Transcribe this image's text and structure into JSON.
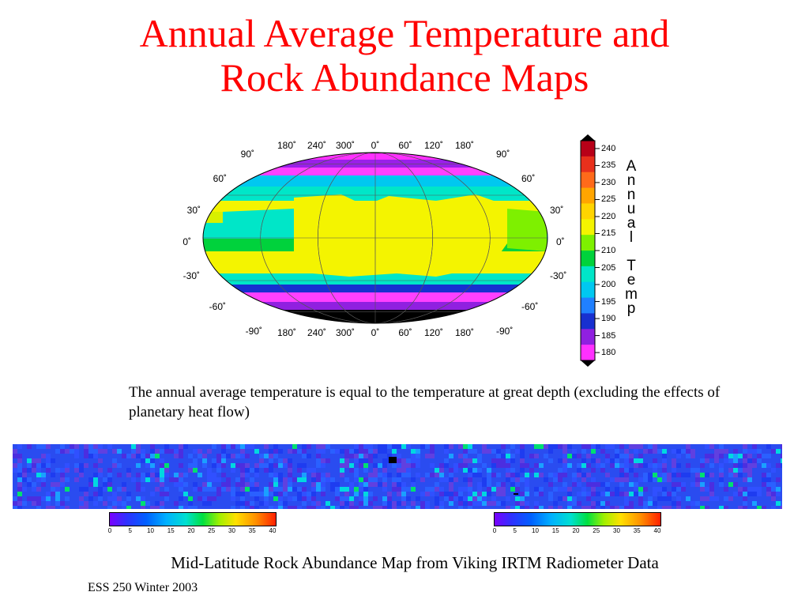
{
  "slide": {
    "title_line1": "Annual Average Temperature and",
    "title_line2": "Rock Abundance Maps",
    "caption": "The annual average temperature is equal to the temperature at great depth (excluding the effects of planetary heat flow)",
    "bottom_caption": "Mid-Latitude Rock Abundance Map from Viking IRTM Radiometer Data",
    "footer": "ESS 250 Winter 2003",
    "title_color": "#ff0000"
  },
  "temp_map": {
    "lon_labels": [
      "180˚",
      "240˚",
      "300˚",
      "0˚",
      "60˚",
      "120˚",
      "180˚"
    ],
    "lat_labels_left": [
      "90˚",
      "60˚",
      "30˚",
      "0˚",
      "-30˚",
      "-60˚",
      "-90˚"
    ],
    "lat_labels_right": [
      "90˚",
      "60˚",
      "30˚",
      "0˚",
      "-30˚",
      "-60˚",
      "-90˚"
    ]
  },
  "colorbar": {
    "title": "Annual Temp",
    "title_chars": [
      "A",
      "n",
      "n",
      "u",
      "a",
      "l",
      "",
      "T",
      "e",
      "m",
      "p"
    ],
    "ticks": [
      "240",
      "235",
      "230",
      "225",
      "220",
      "215",
      "210",
      "205",
      "200",
      "195",
      "190",
      "185",
      "180"
    ],
    "colors": [
      "#b80018",
      "#e8301c",
      "#ff6a1a",
      "#ffa500",
      "#ffd400",
      "#f4f400",
      "#7ef000",
      "#00d23c",
      "#00e6c8",
      "#00c8f0",
      "#2080ff",
      "#1830d0",
      "#9020e0",
      "#ff30ff"
    ]
  },
  "rock_scale": {
    "ticks": [
      "0",
      "5",
      "10",
      "15",
      "20",
      "25",
      "30",
      "35",
      "40"
    ]
  }
}
